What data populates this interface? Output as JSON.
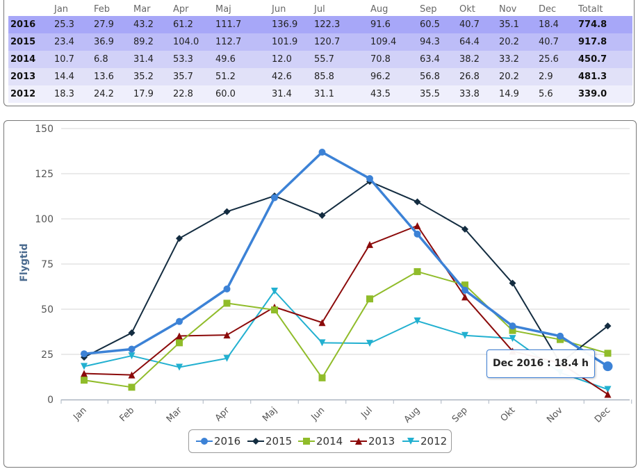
{
  "table": {
    "columns": [
      "",
      "Jan",
      "Feb",
      "Mar",
      "Apr",
      "Maj",
      "Jun",
      "Jul",
      "Aug",
      "Sep",
      "Okt",
      "Nov",
      "Dec",
      "Totalt"
    ],
    "rows": [
      {
        "year": "2016",
        "values": [
          "25.3",
          "27.9",
          "43.2",
          "61.2",
          "111.7",
          "136.9",
          "122.3",
          "91.6",
          "60.5",
          "40.7",
          "35.1",
          "18.4"
        ],
        "total": "774.8"
      },
      {
        "year": "2015",
        "values": [
          "23.4",
          "36.9",
          "89.2",
          "104.0",
          "112.7",
          "101.9",
          "120.7",
          "109.4",
          "94.3",
          "64.4",
          "20.2",
          "40.7"
        ],
        "total": "917.8"
      },
      {
        "year": "2014",
        "values": [
          "10.7",
          "6.8",
          "31.4",
          "53.3",
          "49.6",
          "12.0",
          "55.7",
          "70.8",
          "63.4",
          "38.2",
          "33.2",
          "25.6"
        ],
        "total": "450.7"
      },
      {
        "year": "2013",
        "values": [
          "14.4",
          "13.6",
          "35.2",
          "35.7",
          "51.2",
          "42.6",
          "85.8",
          "96.2",
          "56.8",
          "26.8",
          "20.2",
          "2.9"
        ],
        "total": "481.3"
      },
      {
        "year": "2012",
        "values": [
          "18.3",
          "24.2",
          "17.9",
          "22.8",
          "60.0",
          "31.4",
          "31.1",
          "43.5",
          "35.5",
          "33.8",
          "14.9",
          "5.6"
        ],
        "total": "339.0"
      }
    ]
  },
  "tooltip": "Dec 2016 : 18.4 h",
  "chart_data": {
    "type": "line",
    "categories": [
      "Jan",
      "Feb",
      "Mar",
      "Apr",
      "Maj",
      "Jun",
      "Jul",
      "Aug",
      "Sep",
      "Okt",
      "Nov",
      "Dec"
    ],
    "ylabel": "Flygtid",
    "ylim": [
      0,
      150
    ],
    "yticks": [
      0,
      25,
      50,
      75,
      100,
      125,
      150
    ],
    "grid": true,
    "legend": "bottom-center",
    "series": [
      {
        "name": "2016",
        "color": "#3c82d6",
        "marker": "circle",
        "values": [
          25.3,
          27.9,
          43.2,
          61.2,
          111.7,
          136.9,
          122.3,
          91.6,
          60.5,
          40.7,
          35.1,
          18.4
        ]
      },
      {
        "name": "2015",
        "color": "#132c40",
        "marker": "diamond",
        "values": [
          23.4,
          36.9,
          89.2,
          104.0,
          112.7,
          101.9,
          120.7,
          109.4,
          94.3,
          64.4,
          20.2,
          40.7
        ]
      },
      {
        "name": "2014",
        "color": "#90bc2a",
        "marker": "square",
        "values": [
          10.7,
          6.8,
          31.4,
          53.3,
          49.6,
          12.0,
          55.7,
          70.8,
          63.4,
          38.2,
          33.2,
          25.6
        ]
      },
      {
        "name": "2013",
        "color": "#8b0a0a",
        "marker": "triangle",
        "values": [
          14.4,
          13.6,
          35.2,
          35.7,
          51.2,
          42.6,
          85.8,
          96.2,
          56.8,
          26.8,
          20.2,
          2.9
        ]
      },
      {
        "name": "2012",
        "color": "#22b0d0",
        "marker": "triangle-down",
        "values": [
          18.3,
          24.2,
          17.9,
          22.8,
          60.0,
          31.4,
          31.1,
          43.5,
          35.5,
          33.8,
          14.9,
          5.6
        ]
      }
    ]
  }
}
